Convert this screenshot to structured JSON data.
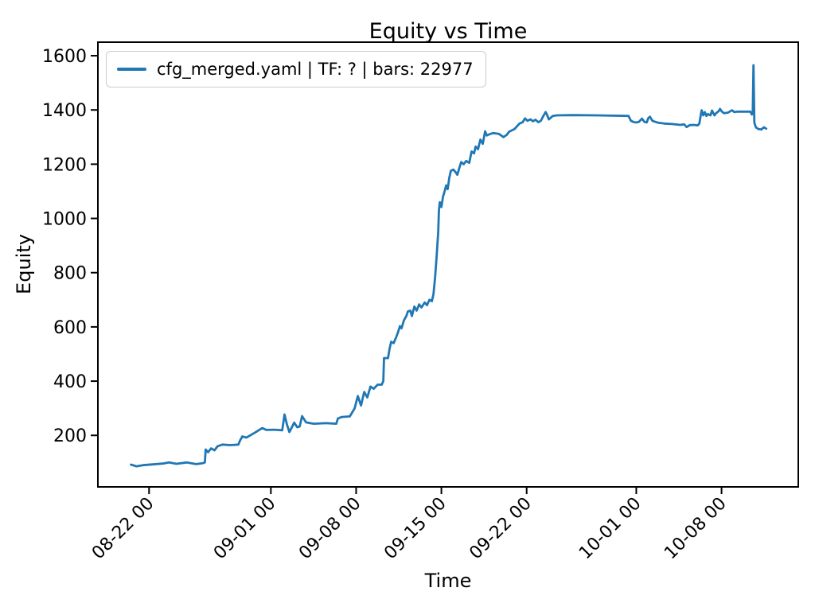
{
  "chart_data": {
    "type": "line",
    "title": "Equity vs Time",
    "xlabel": "Time",
    "ylabel": "Equity",
    "grid": false,
    "legend_position": "upper left",
    "line_color": "#1f77b4",
    "x_unit": "days since 08-20 00:00",
    "xlim": [
      -2.2,
      55.3
    ],
    "ylim": [
      10,
      1650
    ],
    "x_ticks": [
      {
        "day": 2,
        "label": "08-22 00"
      },
      {
        "day": 12,
        "label": "09-01 00"
      },
      {
        "day": 19,
        "label": "09-08 00"
      },
      {
        "day": 26,
        "label": "09-15 00"
      },
      {
        "day": 33,
        "label": "09-22 00"
      },
      {
        "day": 42,
        "label": "10-01 00"
      },
      {
        "day": 49,
        "label": "10-08 00"
      }
    ],
    "y_ticks": [
      200,
      400,
      600,
      800,
      1000,
      1200,
      1400,
      1600
    ],
    "series": [
      {
        "name": "cfg_merged.yaml | TF: ? | bars: 22977",
        "color": "#1f77b4",
        "points": [
          [
            0.51,
            92
          ],
          [
            0.97,
            86
          ],
          [
            1.49,
            90
          ],
          [
            3.12,
            96
          ],
          [
            3.65,
            100
          ],
          [
            4.24,
            95
          ],
          [
            5.09,
            100
          ],
          [
            5.87,
            94
          ],
          [
            6.39,
            97
          ],
          [
            6.58,
            100
          ],
          [
            6.65,
            148
          ],
          [
            6.84,
            138
          ],
          [
            7.1,
            152
          ],
          [
            7.37,
            145
          ],
          [
            7.63,
            160
          ],
          [
            8.02,
            166
          ],
          [
            8.68,
            164
          ],
          [
            9.33,
            166
          ],
          [
            9.46,
            180
          ],
          [
            9.66,
            196
          ],
          [
            9.99,
            192
          ],
          [
            10.31,
            200
          ],
          [
            10.77,
            212
          ],
          [
            11.29,
            227
          ],
          [
            11.62,
            220
          ],
          [
            12.27,
            221
          ],
          [
            12.93,
            219
          ],
          [
            13.12,
            277
          ],
          [
            13.32,
            240
          ],
          [
            13.52,
            212
          ],
          [
            13.78,
            235
          ],
          [
            13.91,
            247
          ],
          [
            14.17,
            230
          ],
          [
            14.37,
            233
          ],
          [
            14.56,
            271
          ],
          [
            14.89,
            248
          ],
          [
            15.22,
            245
          ],
          [
            15.54,
            243
          ],
          [
            16.52,
            245
          ],
          [
            17.37,
            243
          ],
          [
            17.5,
            262
          ],
          [
            17.83,
            268
          ],
          [
            18.48,
            270
          ],
          [
            18.75,
            290
          ],
          [
            18.88,
            300
          ],
          [
            19.14,
            345
          ],
          [
            19.4,
            310
          ],
          [
            19.66,
            360
          ],
          [
            19.92,
            340
          ],
          [
            20.18,
            380
          ],
          [
            20.44,
            372
          ],
          [
            20.77,
            387
          ],
          [
            21.1,
            387
          ],
          [
            21.23,
            400
          ],
          [
            21.29,
            485
          ],
          [
            21.62,
            485
          ],
          [
            21.75,
            520
          ],
          [
            21.88,
            545
          ],
          [
            22.08,
            540
          ],
          [
            22.27,
            560
          ],
          [
            22.4,
            575
          ],
          [
            22.6,
            603
          ],
          [
            22.73,
            595
          ],
          [
            22.93,
            625
          ],
          [
            23.12,
            640
          ],
          [
            23.25,
            657
          ],
          [
            23.45,
            660
          ],
          [
            23.58,
            640
          ],
          [
            23.78,
            675
          ],
          [
            23.97,
            660
          ],
          [
            24.17,
            683
          ],
          [
            24.37,
            672
          ],
          [
            24.63,
            690
          ],
          [
            24.82,
            680
          ],
          [
            25.02,
            700
          ],
          [
            25.22,
            695
          ],
          [
            25.35,
            720
          ],
          [
            25.48,
            780
          ],
          [
            25.61,
            860
          ],
          [
            25.74,
            950
          ],
          [
            25.8,
            1030
          ],
          [
            25.87,
            1060
          ],
          [
            26.0,
            1042
          ],
          [
            26.13,
            1080
          ],
          [
            26.26,
            1100
          ],
          [
            26.39,
            1122
          ],
          [
            26.52,
            1108
          ],
          [
            26.65,
            1150
          ],
          [
            26.78,
            1176
          ],
          [
            26.98,
            1180
          ],
          [
            27.18,
            1170
          ],
          [
            27.31,
            1161
          ],
          [
            27.5,
            1190
          ],
          [
            27.63,
            1208
          ],
          [
            27.83,
            1200
          ],
          [
            28.03,
            1212
          ],
          [
            28.29,
            1205
          ],
          [
            28.48,
            1247
          ],
          [
            28.68,
            1240
          ],
          [
            28.81,
            1265
          ],
          [
            29.01,
            1255
          ],
          [
            29.2,
            1291
          ],
          [
            29.4,
            1275
          ],
          [
            29.59,
            1321
          ],
          [
            29.73,
            1306
          ],
          [
            29.92,
            1310
          ],
          [
            30.25,
            1315
          ],
          [
            30.71,
            1312
          ],
          [
            31.1,
            1300
          ],
          [
            31.36,
            1308
          ],
          [
            31.56,
            1320
          ],
          [
            32.01,
            1330
          ],
          [
            32.21,
            1340
          ],
          [
            32.41,
            1350
          ],
          [
            32.67,
            1355
          ],
          [
            32.86,
            1369
          ],
          [
            33.06,
            1360
          ],
          [
            33.32,
            1365
          ],
          [
            33.52,
            1358
          ],
          [
            33.71,
            1364
          ],
          [
            33.97,
            1355
          ],
          [
            34.17,
            1360
          ],
          [
            34.37,
            1378
          ],
          [
            34.56,
            1392
          ],
          [
            34.69,
            1380
          ],
          [
            34.82,
            1365
          ],
          [
            35.15,
            1378
          ],
          [
            35.48,
            1380
          ],
          [
            36.78,
            1381
          ],
          [
            38.75,
            1380
          ],
          [
            41.36,
            1378
          ],
          [
            41.56,
            1360
          ],
          [
            41.82,
            1355
          ],
          [
            42.01,
            1354
          ],
          [
            42.21,
            1356
          ],
          [
            42.47,
            1368
          ],
          [
            42.67,
            1356
          ],
          [
            42.86,
            1354
          ],
          [
            42.99,
            1370
          ],
          [
            43.12,
            1375
          ],
          [
            43.32,
            1360
          ],
          [
            43.52,
            1357
          ],
          [
            43.78,
            1353
          ],
          [
            44.3,
            1350
          ],
          [
            44.95,
            1348
          ],
          [
            45.61,
            1345
          ],
          [
            45.93,
            1347
          ],
          [
            46.13,
            1337
          ],
          [
            46.39,
            1344
          ],
          [
            46.72,
            1345
          ],
          [
            47.05,
            1343
          ],
          [
            47.18,
            1350
          ],
          [
            47.31,
            1385
          ],
          [
            47.37,
            1399
          ],
          [
            47.5,
            1380
          ],
          [
            47.63,
            1392
          ],
          [
            47.76,
            1378
          ],
          [
            47.89,
            1385
          ],
          [
            48.09,
            1380
          ],
          [
            48.22,
            1398
          ],
          [
            48.42,
            1380
          ],
          [
            48.55,
            1388
          ],
          [
            48.75,
            1395
          ],
          [
            48.88,
            1404
          ],
          [
            49.01,
            1395
          ],
          [
            49.2,
            1388
          ],
          [
            49.53,
            1390
          ],
          [
            49.86,
            1399
          ],
          [
            50.05,
            1392
          ],
          [
            50.31,
            1394
          ],
          [
            50.84,
            1394
          ],
          [
            51.36,
            1394
          ],
          [
            51.49,
            1383
          ],
          [
            51.56,
            1390
          ],
          [
            51.62,
            1565
          ],
          [
            51.69,
            1353
          ],
          [
            51.82,
            1336
          ],
          [
            52.01,
            1330
          ],
          [
            52.27,
            1328
          ],
          [
            52.47,
            1336
          ],
          [
            52.67,
            1331
          ]
        ]
      }
    ]
  }
}
